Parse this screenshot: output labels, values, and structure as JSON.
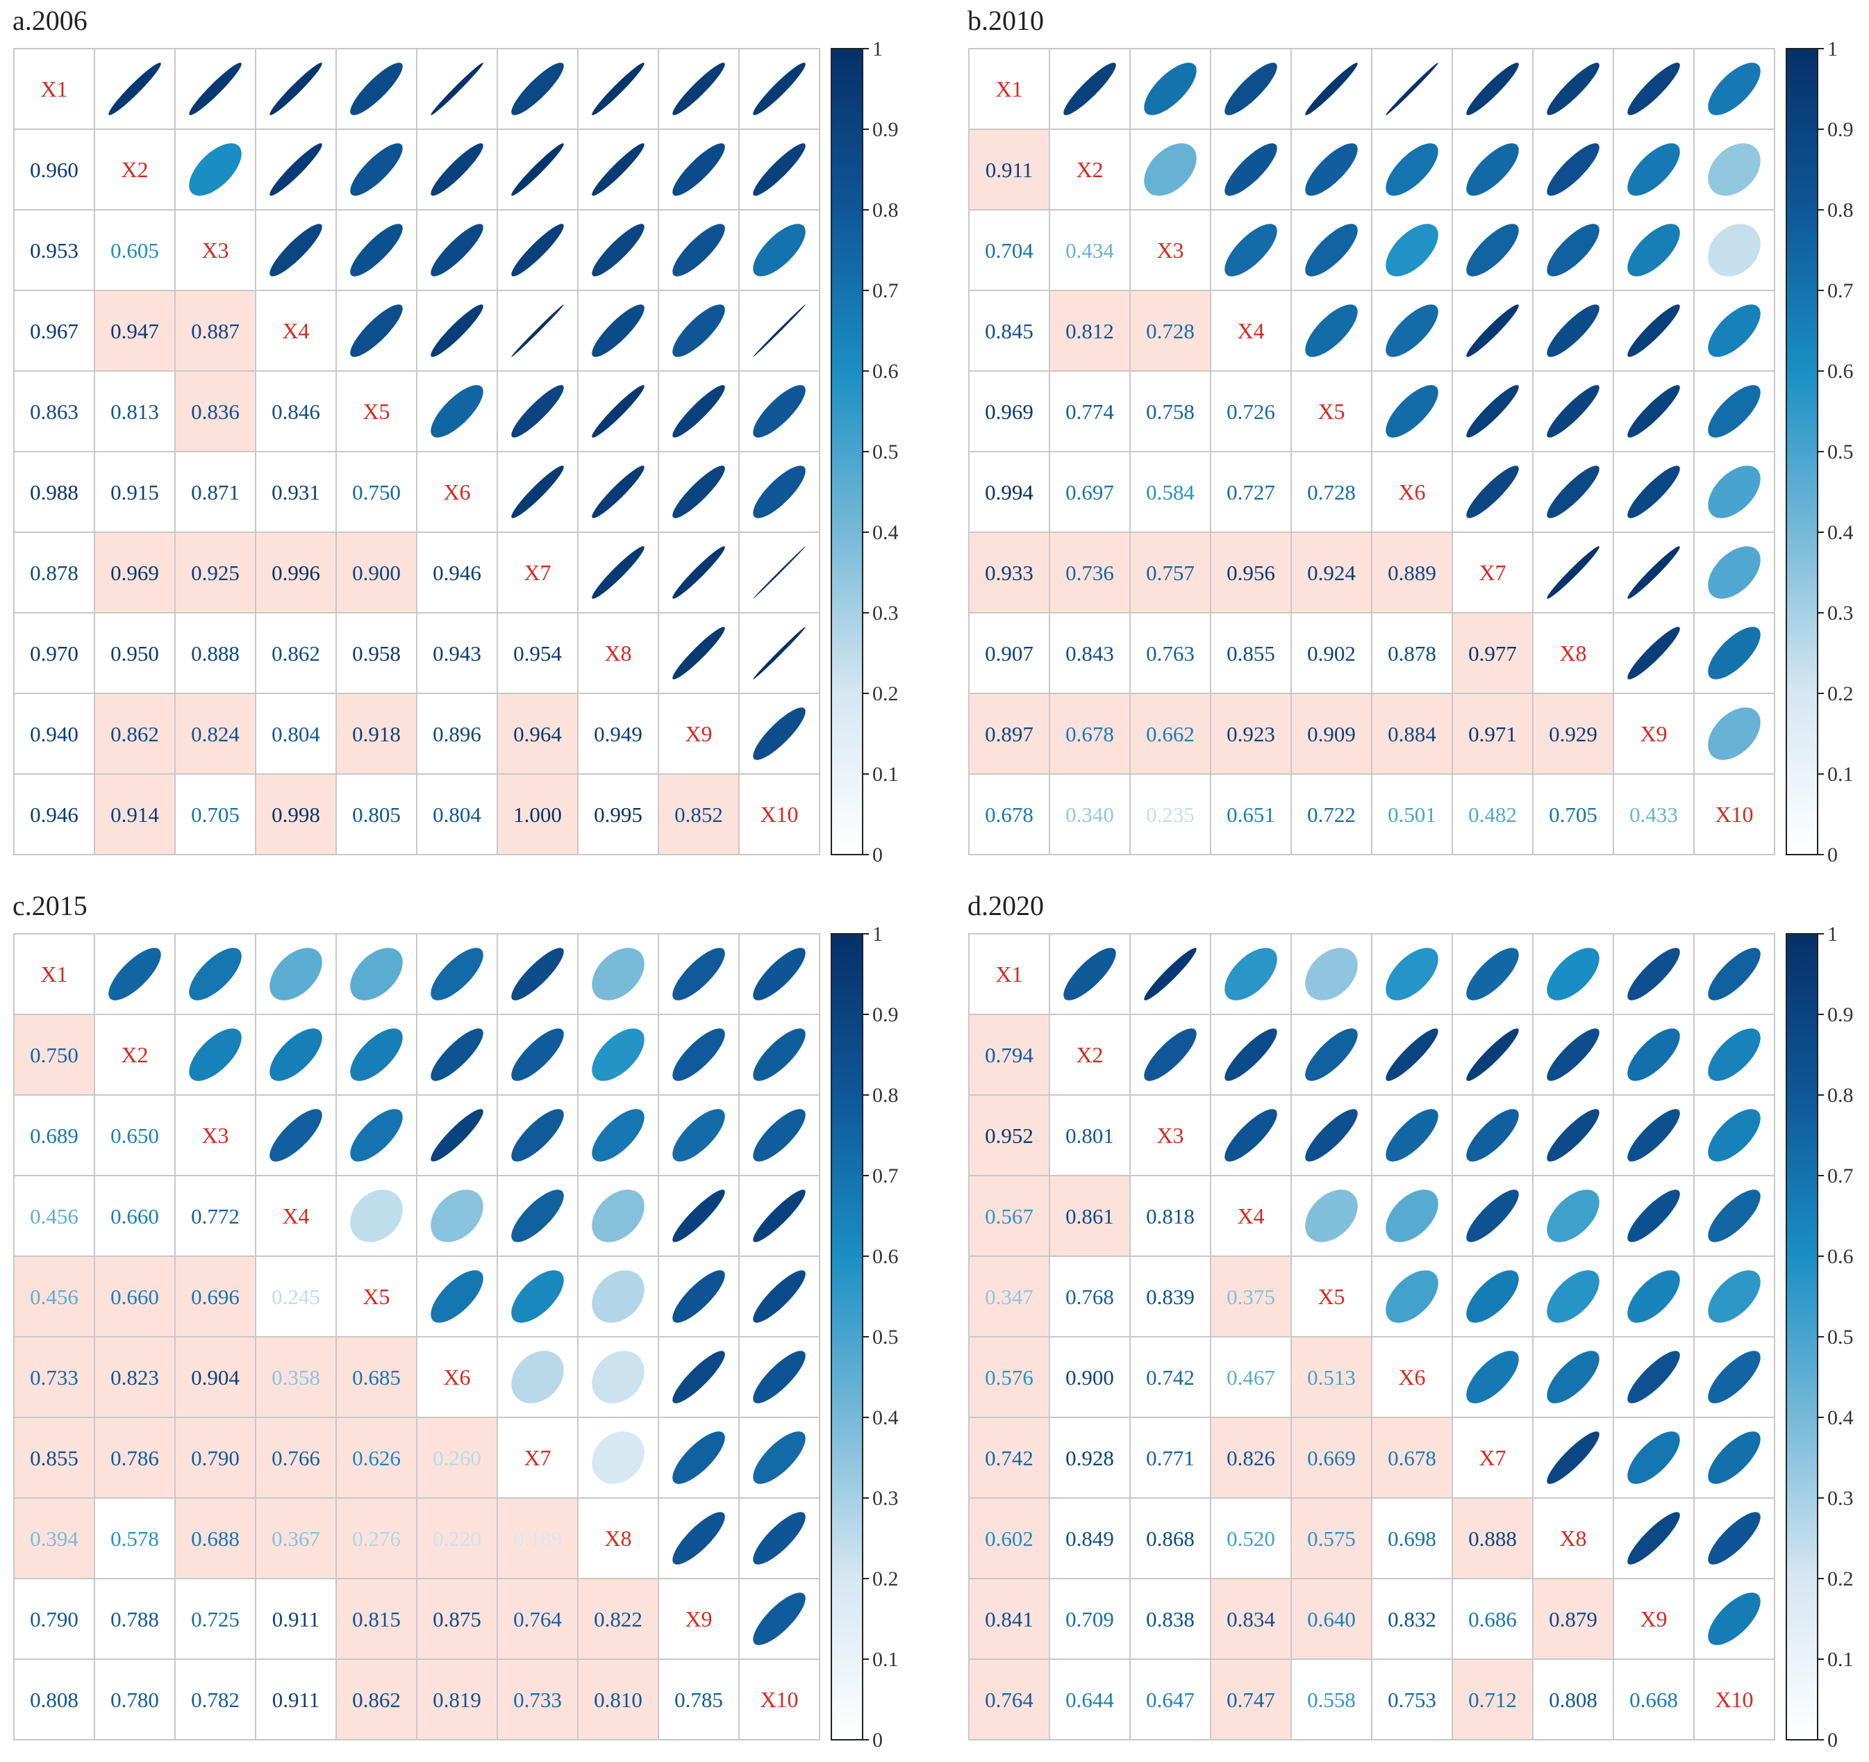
{
  "chart_data": [
    {
      "type": "heatmap",
      "title": "a.2006",
      "variables": [
        "X1",
        "X2",
        "X3",
        "X4",
        "X5",
        "X6",
        "X7",
        "X8",
        "X9",
        "X10"
      ],
      "colorbar": {
        "min": 0,
        "max": 1,
        "ticks": [
          "0",
          "0.1",
          "0.2",
          "0.3",
          "0.4",
          "0.5",
          "0.6",
          "0.7",
          "0.8",
          "0.9",
          "1"
        ]
      },
      "lower": [
        [],
        [
          "0.960"
        ],
        [
          "0.953",
          "0.605"
        ],
        [
          "0.967",
          "0.947",
          "0.887"
        ],
        [
          "0.863",
          "0.813",
          "0.836",
          "0.846"
        ],
        [
          "0.988",
          "0.915",
          "0.871",
          "0.931",
          "0.750"
        ],
        [
          "0.878",
          "0.969",
          "0.925",
          "0.996",
          "0.900",
          "0.946"
        ],
        [
          "0.970",
          "0.950",
          "0.888",
          "0.862",
          "0.958",
          "0.943",
          "0.954"
        ],
        [
          "0.940",
          "0.862",
          "0.824",
          "0.804",
          "0.918",
          "0.896",
          "0.964",
          "0.949"
        ],
        [
          "0.946",
          "0.914",
          "0.705",
          "0.998",
          "0.805",
          "0.804",
          "1.000",
          "0.995",
          "0.852"
        ]
      ],
      "highlight": [
        [
          3,
          1
        ],
        [
          3,
          2
        ],
        [
          4,
          2
        ],
        [
          6,
          1
        ],
        [
          6,
          2
        ],
        [
          6,
          3
        ],
        [
          6,
          4
        ],
        [
          8,
          1
        ],
        [
          8,
          2
        ],
        [
          8,
          4
        ],
        [
          8,
          6
        ],
        [
          9,
          1
        ],
        [
          9,
          3
        ],
        [
          9,
          6
        ],
        [
          9,
          8
        ]
      ]
    },
    {
      "type": "heatmap",
      "title": "b.2010",
      "variables": [
        "X1",
        "X2",
        "X3",
        "X4",
        "X5",
        "X6",
        "X7",
        "X8",
        "X9",
        "X10"
      ],
      "colorbar": {
        "min": 0,
        "max": 1,
        "ticks": [
          "0",
          "0.1",
          "0.2",
          "0.3",
          "0.4",
          "0.5",
          "0.6",
          "0.7",
          "0.8",
          "0.9",
          "1"
        ]
      },
      "lower": [
        [],
        [
          "0.911"
        ],
        [
          "0.704",
          "0.434"
        ],
        [
          "0.845",
          "0.812",
          "0.728"
        ],
        [
          "0.969",
          "0.774",
          "0.758",
          "0.726"
        ],
        [
          "0.994",
          "0.697",
          "0.584",
          "0.727",
          "0.728"
        ],
        [
          "0.933",
          "0.736",
          "0.757",
          "0.956",
          "0.924",
          "0.889"
        ],
        [
          "0.907",
          "0.843",
          "0.763",
          "0.855",
          "0.902",
          "0.878",
          "0.977"
        ],
        [
          "0.897",
          "0.678",
          "0.662",
          "0.923",
          "0.909",
          "0.884",
          "0.971",
          "0.929"
        ],
        [
          "0.678",
          "0.340",
          "0.235",
          "0.651",
          "0.722",
          "0.501",
          "0.482",
          "0.705",
          "0.433"
        ]
      ],
      "highlight": [
        [
          1,
          0
        ],
        [
          3,
          1
        ],
        [
          3,
          2
        ],
        [
          6,
          0
        ],
        [
          6,
          1
        ],
        [
          6,
          2
        ],
        [
          6,
          3
        ],
        [
          6,
          4
        ],
        [
          6,
          5
        ],
        [
          7,
          6
        ],
        [
          8,
          0
        ],
        [
          8,
          1
        ],
        [
          8,
          2
        ],
        [
          8,
          3
        ],
        [
          8,
          4
        ],
        [
          8,
          5
        ],
        [
          8,
          6
        ],
        [
          8,
          7
        ]
      ]
    },
    {
      "type": "heatmap",
      "title": "c.2015",
      "variables": [
        "X1",
        "X2",
        "X3",
        "X4",
        "X5",
        "X6",
        "X7",
        "X8",
        "X9",
        "X10"
      ],
      "colorbar": {
        "min": 0,
        "max": 1,
        "ticks": [
          "0",
          "0.1",
          "0.2",
          "0.3",
          "0.4",
          "0.5",
          "0.6",
          "0.7",
          "0.8",
          "0.9",
          "1"
        ]
      },
      "lower": [
        [],
        [
          "0.750"
        ],
        [
          "0.689",
          "0.650"
        ],
        [
          "0.456",
          "0.660",
          "0.772"
        ],
        [
          "0.456",
          "0.660",
          "0.696",
          "0.245"
        ],
        [
          "0.733",
          "0.823",
          "0.904",
          "0.358",
          "0.685"
        ],
        [
          "0.855",
          "0.786",
          "0.790",
          "0.766",
          "0.626",
          "0.260"
        ],
        [
          "0.394",
          "0.578",
          "0.688",
          "0.367",
          "0.276",
          "0.220",
          "0.189"
        ],
        [
          "0.790",
          "0.788",
          "0.725",
          "0.911",
          "0.815",
          "0.875",
          "0.764",
          "0.822"
        ],
        [
          "0.808",
          "0.780",
          "0.782",
          "0.911",
          "0.862",
          "0.819",
          "0.733",
          "0.810",
          "0.785"
        ]
      ],
      "highlight": [
        [
          1,
          0
        ],
        [
          4,
          0
        ],
        [
          4,
          1
        ],
        [
          4,
          2
        ],
        [
          5,
          0
        ],
        [
          5,
          1
        ],
        [
          5,
          2
        ],
        [
          5,
          3
        ],
        [
          5,
          4
        ],
        [
          6,
          0
        ],
        [
          6,
          1
        ],
        [
          6,
          2
        ],
        [
          6,
          3
        ],
        [
          6,
          4
        ],
        [
          6,
          5
        ],
        [
          7,
          0
        ],
        [
          7,
          2
        ],
        [
          7,
          3
        ],
        [
          7,
          4
        ],
        [
          7,
          5
        ],
        [
          7,
          6
        ],
        [
          8,
          4
        ],
        [
          8,
          5
        ],
        [
          8,
          6
        ],
        [
          8,
          7
        ],
        [
          9,
          4
        ],
        [
          9,
          5
        ],
        [
          9,
          6
        ],
        [
          9,
          7
        ]
      ]
    },
    {
      "type": "heatmap",
      "title": "d.2020",
      "variables": [
        "X1",
        "X2",
        "X3",
        "X4",
        "X5",
        "X6",
        "X7",
        "X8",
        "X9",
        "X10"
      ],
      "colorbar": {
        "min": 0,
        "max": 1,
        "ticks": [
          "0",
          "0.1",
          "0.2",
          "0.3",
          "0.4",
          "0.5",
          "0.6",
          "0.7",
          "0.8",
          "0.9",
          "1"
        ]
      },
      "lower": [
        [],
        [
          "0.794"
        ],
        [
          "0.952",
          "0.801"
        ],
        [
          "0.567",
          "0.861",
          "0.818"
        ],
        [
          "0.347",
          "0.768",
          "0.839",
          "0.375"
        ],
        [
          "0.576",
          "0.900",
          "0.742",
          "0.467",
          "0.513"
        ],
        [
          "0.742",
          "0.928",
          "0.771",
          "0.826",
          "0.669",
          "0.678"
        ],
        [
          "0.602",
          "0.849",
          "0.868",
          "0.520",
          "0.575",
          "0.698",
          "0.888"
        ],
        [
          "0.841",
          "0.709",
          "0.838",
          "0.834",
          "0.640",
          "0.832",
          "0.686",
          "0.879"
        ],
        [
          "0.764",
          "0.644",
          "0.647",
          "0.747",
          "0.558",
          "0.753",
          "0.712",
          "0.808",
          "0.668"
        ]
      ],
      "highlight": [
        [
          1,
          0
        ],
        [
          2,
          0
        ],
        [
          3,
          0
        ],
        [
          3,
          1
        ],
        [
          4,
          0
        ],
        [
          4,
          3
        ],
        [
          5,
          0
        ],
        [
          5,
          4
        ],
        [
          6,
          0
        ],
        [
          6,
          3
        ],
        [
          6,
          4
        ],
        [
          6,
          5
        ],
        [
          7,
          0
        ],
        [
          7,
          4
        ],
        [
          7,
          6
        ],
        [
          8,
          0
        ],
        [
          8,
          3
        ],
        [
          8,
          4
        ],
        [
          8,
          7
        ],
        [
          9,
          0
        ],
        [
          9,
          3
        ],
        [
          9,
          6
        ]
      ]
    }
  ]
}
